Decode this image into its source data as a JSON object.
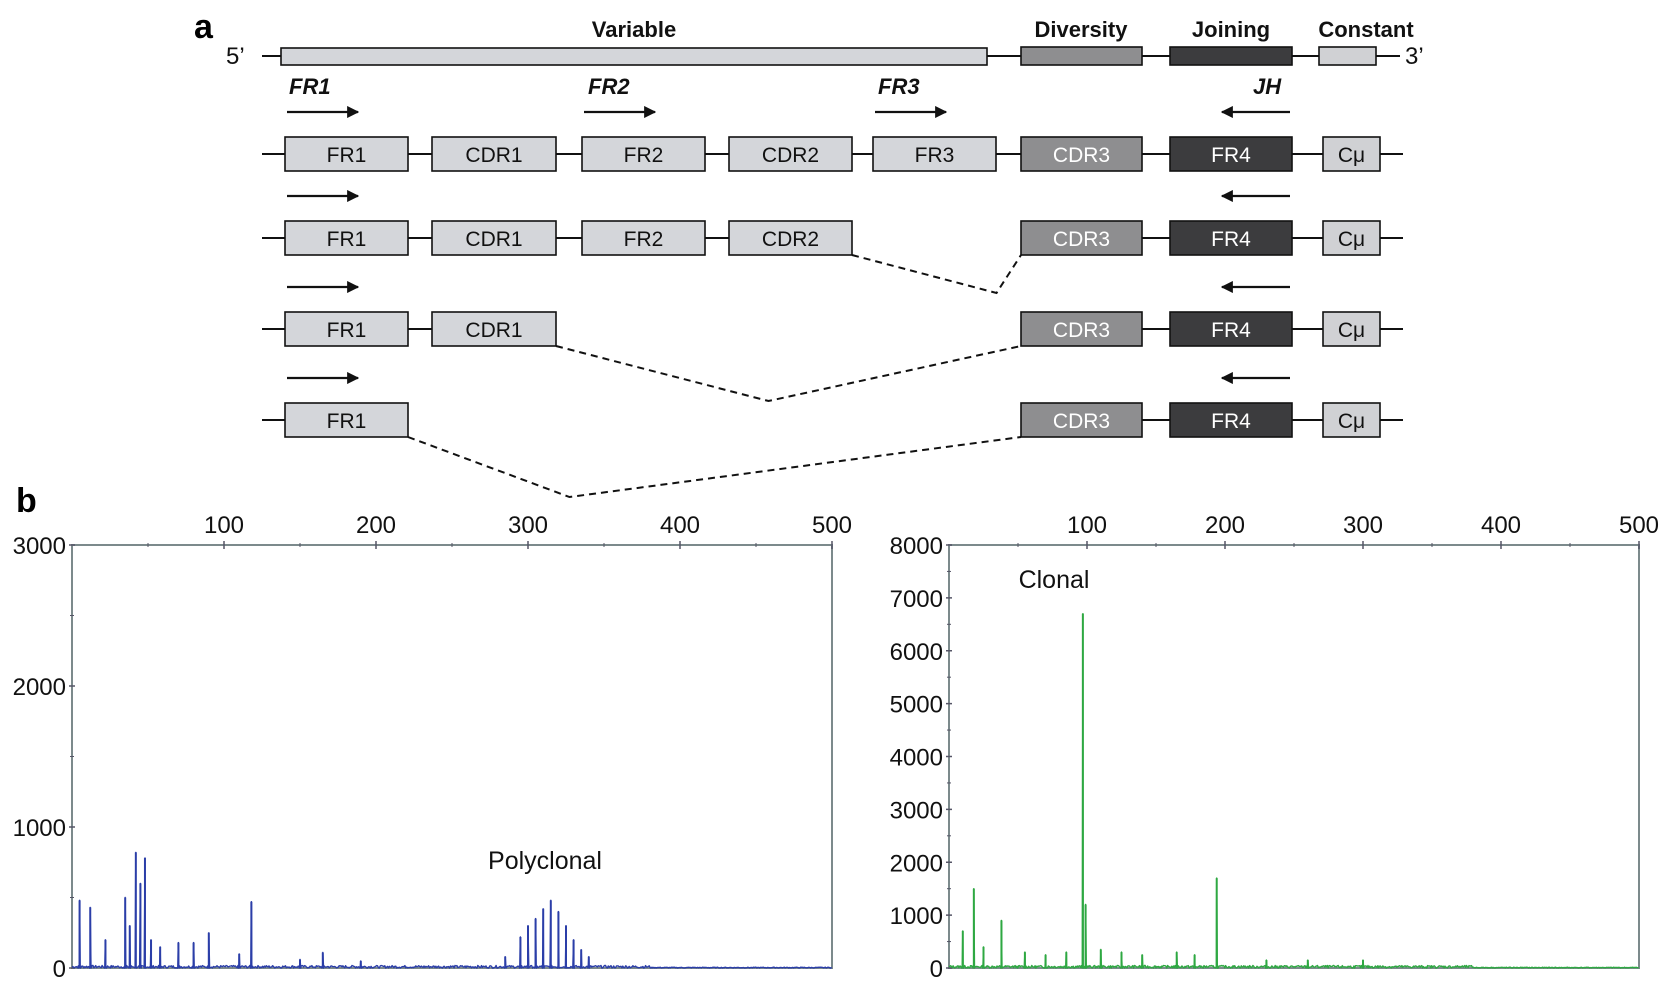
{
  "panel_a": {
    "label": "a",
    "end5": "5’",
    "end3": "3’",
    "segments": {
      "variable": "Variable",
      "diversity": "Diversity",
      "joining": "Joining",
      "constant": "Constant"
    },
    "primers": {
      "fr1": "FR1",
      "fr2": "FR2",
      "fr3": "FR3",
      "jh": "JH"
    },
    "rows": [
      {
        "boxes": [
          "FR1",
          "CDR1",
          "FR2",
          "CDR2",
          "FR3",
          "CDR3",
          "FR4",
          "Cμ"
        ]
      },
      {
        "boxes": [
          "FR1",
          "CDR1",
          "FR2",
          "CDR2",
          "CDR3",
          "FR4",
          "Cμ"
        ]
      },
      {
        "boxes": [
          "FR1",
          "CDR1",
          "CDR3",
          "FR4",
          "Cμ"
        ]
      },
      {
        "boxes": [
          "FR1",
          "CDR3",
          "FR4",
          "Cμ"
        ]
      }
    ],
    "colors": {
      "light": "#d4d6da",
      "medium": "#8e8e90",
      "dark": "#3c3c3e",
      "constant": "#d0d1d4"
    }
  },
  "panel_b": {
    "label": "b"
  },
  "chart_data": [
    {
      "type": "line",
      "name": "polyclonal",
      "annotation": "Polyclonal",
      "x_ticks": [
        "100",
        "200",
        "300",
        "400",
        "500"
      ],
      "y_ticks": [
        "0",
        "1000",
        "2000",
        "3000"
      ],
      "xlim": [
        0,
        500
      ],
      "ylim": [
        0,
        3000
      ],
      "color": "#2b3ea8",
      "peaks": [
        {
          "x": 5,
          "y": 480
        },
        {
          "x": 12,
          "y": 430
        },
        {
          "x": 22,
          "y": 200
        },
        {
          "x": 35,
          "y": 500
        },
        {
          "x": 38,
          "y": 300
        },
        {
          "x": 42,
          "y": 820
        },
        {
          "x": 45,
          "y": 600
        },
        {
          "x": 48,
          "y": 780
        },
        {
          "x": 52,
          "y": 200
        },
        {
          "x": 58,
          "y": 150
        },
        {
          "x": 70,
          "y": 180
        },
        {
          "x": 80,
          "y": 180
        },
        {
          "x": 90,
          "y": 250
        },
        {
          "x": 110,
          "y": 100
        },
        {
          "x": 118,
          "y": 470
        },
        {
          "x": 150,
          "y": 60
        },
        {
          "x": 165,
          "y": 110
        },
        {
          "x": 190,
          "y": 50
        },
        {
          "x": 285,
          "y": 80
        },
        {
          "x": 295,
          "y": 220
        },
        {
          "x": 300,
          "y": 300
        },
        {
          "x": 305,
          "y": 350
        },
        {
          "x": 310,
          "y": 420
        },
        {
          "x": 315,
          "y": 480
        },
        {
          "x": 320,
          "y": 400
        },
        {
          "x": 325,
          "y": 300
        },
        {
          "x": 330,
          "y": 200
        },
        {
          "x": 335,
          "y": 130
        },
        {
          "x": 340,
          "y": 80
        }
      ]
    },
    {
      "type": "line",
      "name": "clonal",
      "annotation": "Clonal",
      "x_ticks": [
        "100",
        "200",
        "300",
        "400",
        "500"
      ],
      "y_ticks": [
        "0",
        "1000",
        "2000",
        "3000",
        "4000",
        "5000",
        "6000",
        "7000",
        "8000"
      ],
      "xlim": [
        0,
        500
      ],
      "ylim": [
        0,
        8000
      ],
      "color": "#2ea842",
      "peaks": [
        {
          "x": 10,
          "y": 700
        },
        {
          "x": 18,
          "y": 1500
        },
        {
          "x": 25,
          "y": 400
        },
        {
          "x": 38,
          "y": 900
        },
        {
          "x": 55,
          "y": 300
        },
        {
          "x": 70,
          "y": 250
        },
        {
          "x": 85,
          "y": 300
        },
        {
          "x": 97,
          "y": 6700
        },
        {
          "x": 99,
          "y": 1200
        },
        {
          "x": 110,
          "y": 350
        },
        {
          "x": 125,
          "y": 300
        },
        {
          "x": 140,
          "y": 250
        },
        {
          "x": 165,
          "y": 300
        },
        {
          "x": 178,
          "y": 250
        },
        {
          "x": 194,
          "y": 1700
        },
        {
          "x": 230,
          "y": 150
        },
        {
          "x": 260,
          "y": 150
        },
        {
          "x": 300,
          "y": 150
        }
      ]
    }
  ]
}
